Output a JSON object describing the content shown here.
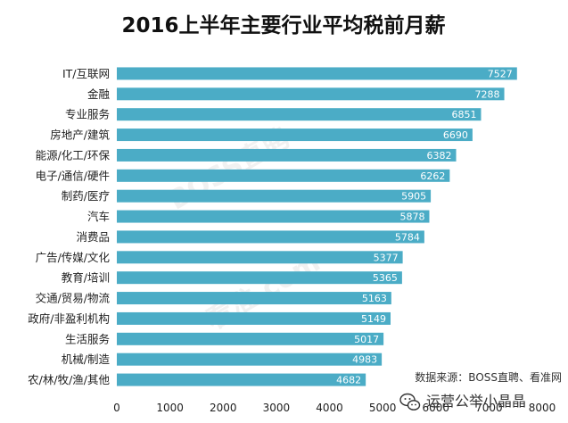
{
  "chart_data": {
    "type": "bar",
    "orientation": "horizontal",
    "title": "2016上半年主要行业平均税前月薪",
    "categories": [
      "IT/互联网",
      "金融",
      "专业服务",
      "房地产/建筑",
      "能源/化工/环保",
      "电子/通信/硬件",
      "制药/医疗",
      "汽车",
      "消费品",
      "广告/传媒/文化",
      "教育/培训",
      "交通/贸易/物流",
      "政府/非盈利机构",
      "生活服务",
      "机械/制造",
      "农/林/牧/渔/其他"
    ],
    "values": [
      7527,
      7288,
      6851,
      6690,
      6382,
      6262,
      5905,
      5878,
      5784,
      5377,
      5365,
      5163,
      5149,
      5017,
      4983,
      4682
    ],
    "xlim": [
      0,
      8000
    ],
    "xticks": [
      "0",
      "1000",
      "2000",
      "3000",
      "4000",
      "5000",
      "6000",
      "7000",
      "8000"
    ],
    "xlabel": "",
    "ylabel": "",
    "grid": false,
    "colors": {
      "bar": "#4bacc6",
      "axis_text": "#1f1f1f",
      "title": "#111111",
      "background": "#ffffff",
      "label_text": "#ffffff",
      "watermark": "#d9d9d9"
    }
  },
  "watermarks": {
    "boss": "BOSS直聘",
    "kanzhun": "看准.com"
  },
  "source": "数据来源：BOSS直聘、看准网",
  "wechat_account": "运营公举小晶晶",
  "icons": {
    "wechat": "wechat-icon"
  }
}
